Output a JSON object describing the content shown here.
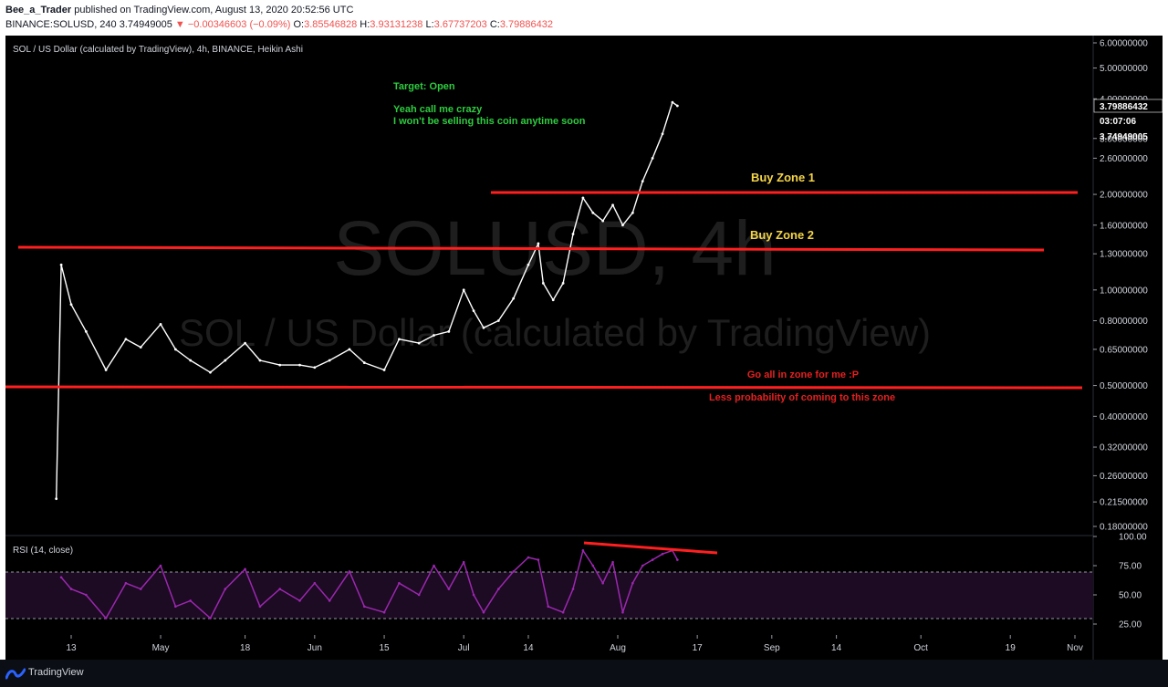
{
  "header": {
    "author": "Bee_a_Trader",
    "published": "published on TradingView.com, August 13, 2020 20:52:56 UTC",
    "symbol": "BINANCE:SOLUSD, 240",
    "last": "3.74949005",
    "change": "−0.00346603 (−0.09%)",
    "o_label": "O:",
    "o_value": "3.85546828",
    "h_label": "H:",
    "h_value": "3.93131238",
    "l_label": "L:",
    "l_value": "3.67737203",
    "c_label": "C:",
    "c_value": "3.79886432"
  },
  "legend": "SOL / US Dollar (calculated by TradingView), 4h, BINANCE, Heikin Ashi",
  "watermark": {
    "line1": "SOLUSD, 4h",
    "line2": "SOL / US Dollar (calculated by TradingView)"
  },
  "annotations": {
    "target": "Target: Open",
    "crazy1": "Yeah call me crazy",
    "crazy2": "I won't be selling this coin anytime soon",
    "buy1": "Buy Zone 1",
    "buy2": "Buy Zone 2",
    "allin1": "Go all in zone for me :P",
    "allin2": "Less probability of coming to this zone"
  },
  "price_badges": {
    "current": "3.79886432",
    "countdown": "03:07:06",
    "prev": "3.74949005"
  },
  "rsi_legend": "RSI (14, close)",
  "footer": {
    "brand": "TradingView"
  },
  "colors": {
    "background": "#000000",
    "candles": "#ffffff",
    "zone_lines": "#ff1f1f",
    "rsi_line": "#9c27b0",
    "annotation_green": "#2ecc40",
    "annotation_yellow": "#f5d547",
    "annotation_red": "#e52020"
  },
  "chart_data": [
    {
      "type": "line",
      "title": "SOL / US Dollar (calculated by TradingView), 4h, BINANCE, Heikin Ashi",
      "scale": "log",
      "y_ticks": [
        6.0,
        5.0,
        4.0,
        3.0,
        2.6,
        2.0,
        1.6,
        1.3,
        1.0,
        0.8,
        0.65,
        0.5,
        0.4,
        0.32,
        0.26,
        0.215,
        0.18
      ],
      "y_tick_labels": [
        "6.00000000",
        "5.00000000",
        "4.00000000",
        "3.00000000",
        "2.60000000",
        "2.00000000",
        "1.60000000",
        "1.30000000",
        "1.00000000",
        "0.80000000",
        "0.65000000",
        "0.50000000",
        "0.40000000",
        "0.32000000",
        "0.26000000",
        "0.21500000",
        "0.18000000"
      ],
      "x_tick_labels": [
        "13",
        "May",
        "18",
        "Jun",
        "15",
        "Jul",
        "14",
        "Aug",
        "17",
        "Sep",
        "14",
        "Oct",
        "19",
        "Nov"
      ],
      "x_tick_dates": [
        "2020-04-13",
        "2020-05-01",
        "2020-05-18",
        "2020-06-01",
        "2020-06-15",
        "2020-07-01",
        "2020-07-14",
        "2020-08-01",
        "2020-08-17",
        "2020-09-01",
        "2020-09-14",
        "2020-10-01",
        "2020-10-19",
        "2020-11-01"
      ],
      "series": [
        {
          "x": [
            "2020-04-10",
            "2020-04-11",
            "2020-04-13",
            "2020-04-16",
            "2020-04-20",
            "2020-04-24",
            "2020-04-27",
            "2020-05-01",
            "2020-05-04",
            "2020-05-07",
            "2020-05-11",
            "2020-05-14",
            "2020-05-18",
            "2020-05-21",
            "2020-05-25",
            "2020-05-29",
            "2020-06-01",
            "2020-06-04",
            "2020-06-08",
            "2020-06-11",
            "2020-06-15",
            "2020-06-18",
            "2020-06-22",
            "2020-06-25",
            "2020-06-28",
            "2020-07-01",
            "2020-07-03",
            "2020-07-05",
            "2020-07-08",
            "2020-07-11",
            "2020-07-14",
            "2020-07-16",
            "2020-07-17",
            "2020-07-19",
            "2020-07-21",
            "2020-07-23",
            "2020-07-25",
            "2020-07-27",
            "2020-07-29",
            "2020-07-31",
            "2020-08-02",
            "2020-08-04",
            "2020-08-06",
            "2020-08-08",
            "2020-08-10",
            "2020-08-12",
            "2020-08-13"
          ],
          "values": [
            0.22,
            1.2,
            0.9,
            0.74,
            0.56,
            0.7,
            0.66,
            0.78,
            0.65,
            0.6,
            0.55,
            0.6,
            0.68,
            0.6,
            0.58,
            0.58,
            0.57,
            0.6,
            0.65,
            0.59,
            0.56,
            0.7,
            0.68,
            0.72,
            0.74,
            1.0,
            0.86,
            0.76,
            0.8,
            0.94,
            1.2,
            1.4,
            1.05,
            0.93,
            1.05,
            1.5,
            1.95,
            1.75,
            1.65,
            1.85,
            1.6,
            1.75,
            2.2,
            2.6,
            3.1,
            3.9,
            3.8
          ]
        }
      ]
    },
    {
      "type": "line",
      "title": "RSI (14, close)",
      "y_ticks": [
        100,
        75,
        50,
        25
      ],
      "y_tick_labels": [
        "100.00",
        "75.00",
        "50.00",
        "25.00"
      ],
      "bands": [
        30,
        70
      ],
      "series": [
        {
          "x": [
            "2020-04-11",
            "2020-04-13",
            "2020-04-16",
            "2020-04-20",
            "2020-04-24",
            "2020-04-27",
            "2020-05-01",
            "2020-05-04",
            "2020-05-07",
            "2020-05-11",
            "2020-05-14",
            "2020-05-18",
            "2020-05-21",
            "2020-05-25",
            "2020-05-29",
            "2020-06-01",
            "2020-06-04",
            "2020-06-08",
            "2020-06-11",
            "2020-06-15",
            "2020-06-18",
            "2020-06-22",
            "2020-06-25",
            "2020-06-28",
            "2020-07-01",
            "2020-07-03",
            "2020-07-05",
            "2020-07-08",
            "2020-07-11",
            "2020-07-14",
            "2020-07-16",
            "2020-07-18",
            "2020-07-21",
            "2020-07-23",
            "2020-07-25",
            "2020-07-27",
            "2020-07-29",
            "2020-07-31",
            "2020-08-02",
            "2020-08-04",
            "2020-08-06",
            "2020-08-08",
            "2020-08-10",
            "2020-08-12",
            "2020-08-13"
          ],
          "values": [
            65,
            55,
            50,
            30,
            60,
            55,
            75,
            40,
            45,
            30,
            55,
            72,
            40,
            55,
            45,
            60,
            45,
            70,
            40,
            35,
            60,
            50,
            75,
            55,
            78,
            50,
            35,
            55,
            70,
            82,
            80,
            40,
            35,
            55,
            88,
            75,
            60,
            78,
            35,
            60,
            75,
            80,
            85,
            88,
            80
          ]
        }
      ]
    }
  ]
}
